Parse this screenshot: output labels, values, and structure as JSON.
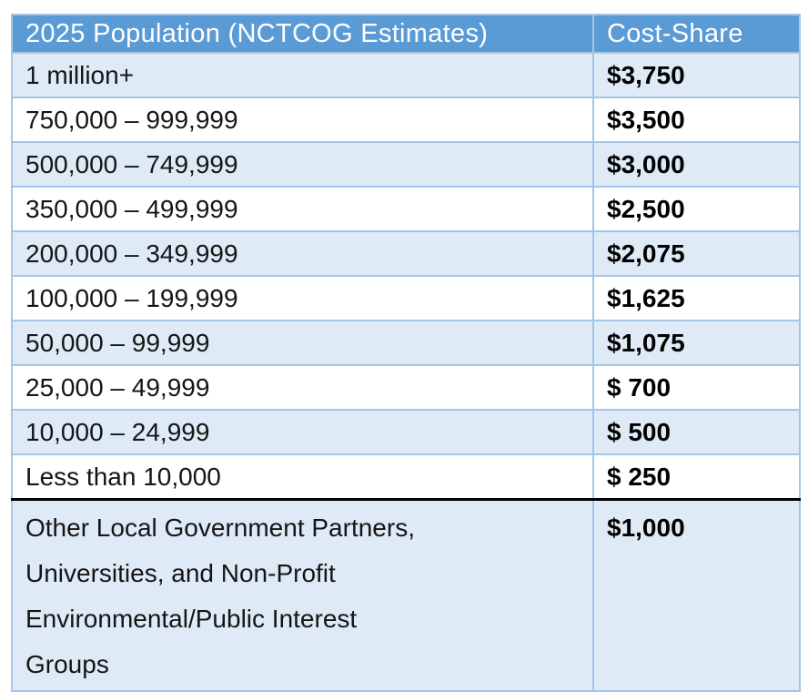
{
  "table": {
    "headers": {
      "population": "2025 Population (NCTCOG Estimates)",
      "cost": "Cost-Share"
    },
    "rows": [
      {
        "population": "1 million+",
        "cost": "$3,750"
      },
      {
        "population": "750,000 – 999,999",
        "cost": "$3,500"
      },
      {
        "population": "500,000 – 749,999",
        "cost": "$3,000"
      },
      {
        "population": "350,000 – 499,999",
        "cost": "$2,500"
      },
      {
        "population": "200,000 – 349,999",
        "cost": "$2,075"
      },
      {
        "population": "100,000 – 199,999",
        "cost": "$1,625"
      },
      {
        "population": "50,000 – 99,999",
        "cost": "$1,075"
      },
      {
        "population": "25,000 – 49,999",
        "cost": "$ 700"
      },
      {
        "population": "10,000 – 24,999",
        "cost": "$ 500"
      },
      {
        "population": "Less than 10,000",
        "cost": "$ 250"
      }
    ],
    "footer_row": {
      "population": "Other Local Government Partners,\nUniversities, and Non-Profit\nEnvironmental/Public Interest\nGroups",
      "cost": "$1,000"
    },
    "colors": {
      "header_bg": "#5b9bd5",
      "header_text": "#ffffff",
      "row_alt_bg": "#deeaf6",
      "row_white_bg": "#ffffff",
      "grid_border": "#a3c6e8",
      "footer_divider": "#000000"
    }
  }
}
